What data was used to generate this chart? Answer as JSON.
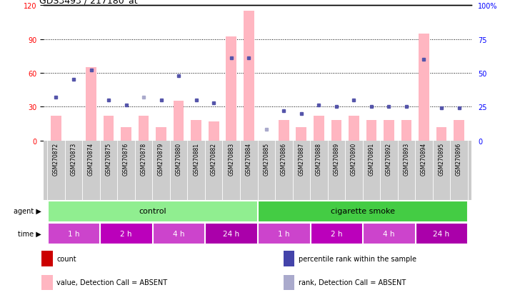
{
  "title": "GDS3493 / 217180_at",
  "samples": [
    "GSM270872",
    "GSM270873",
    "GSM270874",
    "GSM270875",
    "GSM270876",
    "GSM270878",
    "GSM270879",
    "GSM270880",
    "GSM270881",
    "GSM270882",
    "GSM270883",
    "GSM270884",
    "GSM270885",
    "GSM270886",
    "GSM270887",
    "GSM270888",
    "GSM270889",
    "GSM270890",
    "GSM270891",
    "GSM270892",
    "GSM270893",
    "GSM270894",
    "GSM270895",
    "GSM270896"
  ],
  "count_values": [
    22,
    0,
    65,
    22,
    12,
    22,
    12,
    35,
    18,
    17,
    92,
    115,
    0,
    18,
    12,
    22,
    18,
    22,
    18,
    18,
    18,
    95,
    12,
    18
  ],
  "rank_values": [
    32,
    45,
    52,
    30,
    26,
    32,
    30,
    48,
    30,
    28,
    61,
    61,
    8,
    22,
    20,
    26,
    25,
    30,
    25,
    25,
    25,
    60,
    24,
    24
  ],
  "count_absent": [
    true,
    true,
    true,
    true,
    true,
    true,
    true,
    true,
    true,
    true,
    true,
    true,
    true,
    true,
    true,
    true,
    true,
    true,
    true,
    true,
    true,
    true,
    true,
    true
  ],
  "rank_absent": [
    false,
    false,
    false,
    false,
    false,
    true,
    false,
    false,
    false,
    false,
    false,
    false,
    true,
    false,
    false,
    false,
    false,
    false,
    false,
    false,
    false,
    false,
    false,
    false
  ],
  "agent_groups": [
    {
      "label": "control",
      "start": 0,
      "end": 11,
      "color": "#90EE90"
    },
    {
      "label": "cigarette smoke",
      "start": 12,
      "end": 23,
      "color": "#44CC44"
    }
  ],
  "time_groups": [
    {
      "label": "1 h",
      "start": 0,
      "end": 2
    },
    {
      "label": "2 h",
      "start": 3,
      "end": 5
    },
    {
      "label": "4 h",
      "start": 6,
      "end": 8
    },
    {
      "label": "24 h",
      "start": 9,
      "end": 11
    },
    {
      "label": "1 h",
      "start": 12,
      "end": 14
    },
    {
      "label": "2 h",
      "start": 15,
      "end": 17
    },
    {
      "label": "4 h",
      "start": 18,
      "end": 20
    },
    {
      "label": "24 h",
      "start": 21,
      "end": 23
    }
  ],
  "time_colors": [
    "#CC44CC",
    "#BB00BB",
    "#CC44CC",
    "#AA00AA",
    "#CC44CC",
    "#BB00BB",
    "#CC44CC",
    "#AA00AA"
  ],
  "left_ylim": [
    0,
    120
  ],
  "left_yticks": [
    0,
    30,
    60,
    90,
    120
  ],
  "right_ylim": [
    0,
    100
  ],
  "right_yticks": [
    0,
    25,
    50,
    75,
    100
  ],
  "bar_color_present": "#FF8080",
  "bar_color_absent": "#FFB6C1",
  "dot_color_present": "#5555AA",
  "dot_color_absent": "#AAAACC",
  "bg_sample": "#CCCCCC",
  "legend_colors": [
    "#CC0000",
    "#4444AA",
    "#FFB6C1",
    "#AAAACC"
  ],
  "legend_labels": [
    "count",
    "percentile rank within the sample",
    "value, Detection Call = ABSENT",
    "rank, Detection Call = ABSENT"
  ]
}
